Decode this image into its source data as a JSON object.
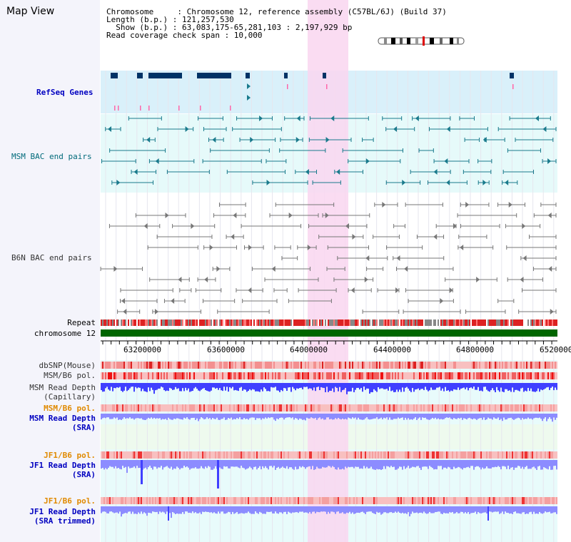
{
  "title": "Map View",
  "info": {
    "chromosome": "Chromosome     : Chromosome 12, reference assembly (C57BL/6J) (Build 37)",
    "length": "Length (b.p.) : 121,257,530",
    "show": "  Show (b.p.) : 63,083,175-65,281,103 : 2,197,929 bp",
    "coverage": "Read coverage check span : 10,000"
  },
  "tracks": {
    "refseq": "RefSeq Genes",
    "msm_bac": "MSM BAC end pairs",
    "b6n_bac": "B6N BAC end pairs",
    "repeat": "Repeat",
    "chromosome": "chromosome 12",
    "dbsnp": "dbSNP(Mouse)",
    "msm_b6_pol": "MSM/B6 pol.",
    "msm_depth_cap_1": "MSM Read Depth",
    "msm_depth_cap_2": "(Capillary)",
    "msm_b6_pol_2": "MSM/B6 pol.",
    "msm_depth_sra_1": "MSM Read Depth",
    "msm_depth_sra_2": "(SRA)",
    "jf1_b6_pol": "JF1/B6 pol.",
    "jf1_depth_1": "JF1 Read Depth",
    "jf1_depth_2": "(SRA)",
    "jf1_b6_pol_2": "JF1/B6 pol.",
    "jf1_trim_1": "JF1 Read Depth",
    "jf1_trim_2": "(SRA trimmed)"
  },
  "axis": {
    "ticks": [
      "63200000",
      "63600000",
      "64000000",
      "64400000",
      "64800000",
      "65200000"
    ]
  },
  "colors": {
    "highlight": "#f9d6f0",
    "refseq_bg": "#d9f0fa",
    "msm_bg": "#e6fafa",
    "gene": "#003366",
    "msm_feature": "#1a7a8c",
    "b6n_feature": "#777777",
    "chromosome_bar": "#006600",
    "depth": "#4040ff",
    "depth_light": "#8c8cff"
  }
}
